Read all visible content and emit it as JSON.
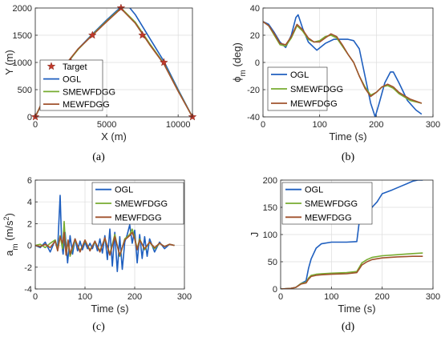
{
  "colors": {
    "OGL": "#1f5fbf",
    "SMEWFDGG": "#77ac30",
    "MEWFDGG": "#a0522d",
    "target": "#c0392b"
  },
  "chart_data": [
    {
      "type": "line",
      "caption": "(a)",
      "xlabel": "X (m)",
      "ylabel": "Y (m)",
      "xlim": [
        0,
        11000
      ],
      "ylim": [
        0,
        2000
      ],
      "xticks": [
        0,
        5000,
        10000
      ],
      "xtick_labels": [
        "0",
        "5000",
        "10000"
      ],
      "yticks": [
        0,
        500,
        1000,
        1500,
        2000
      ],
      "ytick_labels": [
        "0",
        "500",
        "1000",
        "1500",
        "2000"
      ],
      "grid": true,
      "legend": "bottom-left",
      "targets": {
        "name": "Target",
        "x": [
          0,
          1000,
          2000,
          2500,
          4000,
          6000,
          7500,
          9000,
          11000
        ],
        "y": [
          0,
          500,
          750,
          1000,
          1500,
          2000,
          1500,
          1000,
          0
        ]
      },
      "series": [
        {
          "name": "OGL",
          "x": [
            0,
            800,
            1500,
            2200,
            3000,
            4000,
            5000,
            6000,
            6500,
            7000,
            8000,
            9000,
            10000,
            11000
          ],
          "y": [
            0,
            420,
            700,
            970,
            1250,
            1520,
            1780,
            2020,
            2040,
            1880,
            1450,
            1020,
            500,
            0
          ]
        },
        {
          "name": "SMEWFDGG",
          "x": [
            0,
            800,
            1500,
            2200,
            3000,
            4000,
            5000,
            6000,
            7000,
            8000,
            9000,
            10000,
            11000
          ],
          "y": [
            0,
            440,
            720,
            980,
            1240,
            1510,
            1760,
            2000,
            1740,
            1350,
            980,
            480,
            0
          ]
        },
        {
          "name": "MEWFDGG",
          "x": [
            0,
            800,
            1500,
            2200,
            3000,
            4000,
            5000,
            6000,
            7000,
            8000,
            9000,
            10000,
            11000
          ],
          "y": [
            0,
            450,
            730,
            990,
            1250,
            1500,
            1750,
            1990,
            1720,
            1330,
            970,
            470,
            0
          ]
        }
      ]
    },
    {
      "type": "line",
      "caption": "(b)",
      "xlabel": "Time (s)",
      "ylabel": "ϕ",
      "ylabel_sub": "m",
      "ylabel_unit": " (deg)",
      "xlim": [
        0,
        300
      ],
      "ylim": [
        -40,
        40
      ],
      "xticks": [
        0,
        100,
        200,
        300
      ],
      "xtick_labels": [
        "0",
        "100",
        "200",
        "300"
      ],
      "yticks": [
        -40,
        -20,
        0,
        20,
        40
      ],
      "ytick_labels": [
        "-40",
        "-20",
        "0",
        "20",
        "40"
      ],
      "grid": true,
      "legend": "bottom-left",
      "series": [
        {
          "name": "OGL",
          "x": [
            0,
            10,
            20,
            30,
            40,
            50,
            58,
            62,
            70,
            80,
            95,
            110,
            125,
            140,
            150,
            160,
            170,
            180,
            190,
            198,
            205,
            215,
            225,
            230,
            240,
            255,
            270,
            280
          ],
          "y": [
            30,
            28,
            22,
            15,
            11,
            20,
            33,
            35,
            25,
            15,
            9,
            14,
            17,
            17,
            17,
            16,
            10,
            -10,
            -30,
            -40,
            -30,
            -15,
            -7,
            -7,
            -15,
            -28,
            -35,
            -38
          ]
        },
        {
          "name": "SMEWFDGG",
          "x": [
            0,
            10,
            20,
            30,
            40,
            50,
            60,
            70,
            80,
            90,
            100,
            110,
            120,
            130,
            140,
            150,
            160,
            170,
            180,
            190,
            200,
            210,
            220,
            230,
            240,
            260,
            280
          ],
          "y": [
            30,
            27,
            20,
            13,
            12,
            18,
            27,
            23,
            17,
            15,
            16,
            19,
            20,
            18,
            12,
            6,
            0,
            -10,
            -18,
            -24,
            -22,
            -18,
            -17,
            -19,
            -23,
            -28,
            -30
          ]
        },
        {
          "name": "MEWFDGG",
          "x": [
            0,
            10,
            20,
            30,
            40,
            50,
            60,
            70,
            80,
            90,
            100,
            110,
            120,
            130,
            140,
            150,
            160,
            170,
            180,
            190,
            200,
            210,
            220,
            230,
            240,
            260,
            280
          ],
          "y": [
            30,
            27,
            21,
            14,
            13,
            19,
            28,
            24,
            18,
            15,
            15,
            18,
            21,
            19,
            13,
            6,
            0,
            -10,
            -19,
            -25,
            -22,
            -18,
            -16,
            -18,
            -22,
            -27,
            -30
          ]
        }
      ]
    },
    {
      "type": "line",
      "caption": "(c)",
      "xlabel": "Time (s)",
      "ylabel": "a",
      "ylabel_sub": "m",
      "ylabel_unit": " (m/s",
      "ylabel_sup": "2",
      "ylabel_close": ")",
      "xlim": [
        0,
        300
      ],
      "ylim": [
        -4,
        6
      ],
      "xticks": [
        0,
        100,
        200,
        300
      ],
      "xtick_labels": [
        "0",
        "100",
        "200",
        "300"
      ],
      "yticks": [
        -4,
        -2,
        0,
        2,
        4,
        6
      ],
      "ytick_labels": [
        "-4",
        "-2",
        "0",
        "2",
        "4",
        "6"
      ],
      "grid": true,
      "legend": "top-right",
      "series": [
        {
          "name": "OGL",
          "x": [
            0,
            10,
            20,
            30,
            40,
            45,
            50,
            53,
            56,
            60,
            65,
            70,
            75,
            80,
            85,
            90,
            95,
            100,
            105,
            110,
            115,
            120,
            125,
            130,
            135,
            140,
            145,
            150,
            155,
            160,
            165,
            170,
            175,
            180,
            185,
            190,
            195,
            200,
            205,
            210,
            215,
            220,
            225,
            230,
            240,
            250,
            260,
            270,
            280
          ],
          "y": [
            0,
            -0.2,
            0.3,
            -0.6,
            0.5,
            -0.3,
            4.6,
            0.2,
            -0.8,
            1.2,
            -1.6,
            0.9,
            -0.8,
            0.6,
            -0.5,
            0.4,
            -0.4,
            0.3,
            -0.3,
            0.2,
            -0.3,
            0.4,
            -0.5,
            0.6,
            -0.7,
            0.9,
            -1.3,
            1.5,
            -1.9,
            1.2,
            -2.4,
            0.8,
            -2.2,
            0.3,
            1.0,
            1.9,
            0.2,
            1.4,
            -1.6,
            1.0,
            -1.2,
            0.8,
            -1.0,
            0.6,
            -0.6,
            0.3,
            -0.3,
            0.1,
            0
          ]
        },
        {
          "name": "SMEWFDGG",
          "x": [
            0,
            10,
            20,
            30,
            40,
            45,
            50,
            55,
            58,
            62,
            66,
            70,
            80,
            90,
            100,
            110,
            120,
            130,
            140,
            150,
            160,
            170,
            180,
            190,
            195,
            200,
            205,
            210,
            220,
            230,
            240,
            250,
            260,
            270,
            280
          ],
          "y": [
            0,
            0.1,
            -0.2,
            0.2,
            0.5,
            -0.4,
            0.9,
            -0.3,
            2.2,
            -0.8,
            0.4,
            -1.0,
            0.5,
            -0.5,
            0.4,
            -0.4,
            0.3,
            -0.5,
            0.6,
            -0.8,
            1.0,
            -1.0,
            0.6,
            1.0,
            1.5,
            0.7,
            -0.3,
            0.6,
            -0.4,
            0.3,
            -0.3,
            0.2,
            -0.1,
            0.1,
            0
          ]
        },
        {
          "name": "MEWFDGG",
          "x": [
            0,
            10,
            20,
            30,
            40,
            45,
            50,
            55,
            58,
            62,
            66,
            70,
            80,
            90,
            100,
            110,
            120,
            130,
            140,
            150,
            160,
            170,
            180,
            190,
            195,
            200,
            205,
            210,
            220,
            230,
            240,
            250,
            260,
            270,
            280
          ],
          "y": [
            0,
            -0.1,
            0.1,
            -0.2,
            0.4,
            -0.5,
            0.8,
            0.2,
            1.2,
            -0.9,
            0.5,
            -0.8,
            0.6,
            -0.6,
            0.5,
            -0.5,
            0.4,
            -0.6,
            0.7,
            -0.9,
            0.8,
            -0.9,
            0.5,
            0.9,
            1.2,
            0.6,
            -0.4,
            0.5,
            -0.3,
            0.3,
            -0.2,
            0.2,
            -0.1,
            0.1,
            0
          ]
        }
      ]
    },
    {
      "type": "line",
      "caption": "(d)",
      "xlabel": "Time (s)",
      "ylabel": "J",
      "xlim": [
        0,
        300
      ],
      "ylim": [
        0,
        200
      ],
      "xticks": [
        0,
        100,
        200,
        300
      ],
      "xtick_labels": [
        "0",
        "100",
        "200",
        "300"
      ],
      "yticks": [
        0,
        50,
        100,
        150,
        200
      ],
      "ytick_labels": [
        "0",
        "50",
        "100",
        "150",
        "200"
      ],
      "grid": true,
      "legend": "top-left",
      "series": [
        {
          "name": "OGL",
          "x": [
            0,
            20,
            30,
            40,
            50,
            55,
            60,
            70,
            80,
            100,
            130,
            150,
            155,
            160,
            170,
            180,
            190,
            200,
            220,
            240,
            260,
            270,
            280
          ],
          "y": [
            0,
            1,
            3,
            10,
            15,
            38,
            55,
            75,
            83,
            86,
            86,
            87,
            125,
            140,
            145,
            150,
            160,
            175,
            182,
            190,
            198,
            200,
            200
          ]
        },
        {
          "name": "SMEWFDGG",
          "x": [
            0,
            20,
            30,
            40,
            50,
            55,
            60,
            70,
            80,
            100,
            130,
            150,
            155,
            160,
            170,
            180,
            200,
            230,
            260,
            280
          ],
          "y": [
            0,
            1,
            3,
            10,
            12,
            20,
            25,
            27,
            28,
            29,
            30,
            32,
            40,
            48,
            54,
            58,
            61,
            63,
            65,
            66
          ]
        },
        {
          "name": "MEWFDGG",
          "x": [
            0,
            20,
            30,
            40,
            50,
            55,
            60,
            70,
            80,
            100,
            130,
            150,
            155,
            160,
            170,
            180,
            200,
            230,
            260,
            280
          ],
          "y": [
            0,
            1,
            3,
            9,
            11,
            18,
            23,
            25,
            26,
            27,
            28,
            30,
            37,
            44,
            50,
            54,
            57,
            59,
            60,
            60
          ]
        }
      ]
    }
  ]
}
